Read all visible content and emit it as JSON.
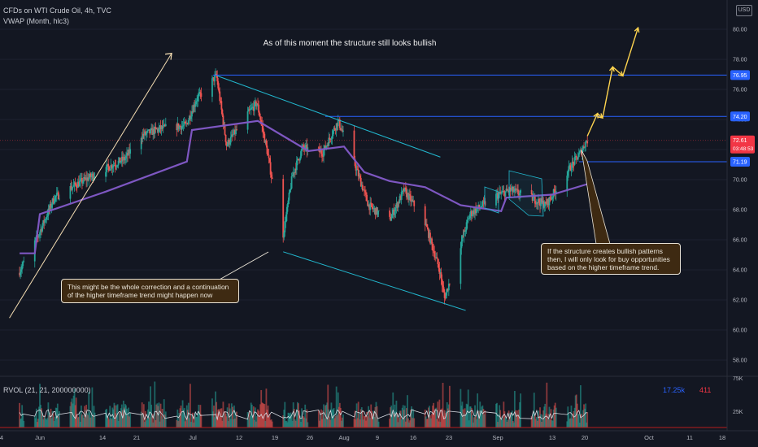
{
  "header": {
    "symbol_line": "CFDs on WTI Crude Oil, 4h, TVC",
    "indicator_line": "VWAP (Month, hlc3)"
  },
  "currency": "USD",
  "annotations": {
    "title": "As of this moment the structure still looks bullish",
    "left_note": "This might be the whole correction and a continuation of the higher timeframe trend might happen now",
    "right_note": "If the structure creates bullish patterns then, I will only look for buy opportunities based on the higher timeframe trend."
  },
  "rvol": {
    "label": "RVOL (21, 21, 200000000)",
    "value1": "17.25k",
    "value2": "411",
    "value1_color": "#2962ff",
    "value2_color": "#f23645",
    "axis_labels": [
      "75K",
      "25K"
    ]
  },
  "price_axis": {
    "ticks": [
      "80.00",
      "78.00",
      "76.00",
      "74.00",
      "72.00",
      "70.00",
      "68.00",
      "66.00",
      "64.00",
      "62.00",
      "60.00",
      "58.00"
    ],
    "badges": [
      {
        "label": "76.95",
        "value": 76.95,
        "color": "#2962ff"
      },
      {
        "label": "74.20",
        "value": 74.2,
        "color": "#2962ff"
      },
      {
        "label": "71.19",
        "value": 71.19,
        "color": "#2962ff"
      }
    ],
    "last_price": {
      "label": "72.61",
      "countdown": "03:48:53",
      "value": 72.61,
      "color": "#f23645"
    }
  },
  "time_axis": [
    "4",
    "Jun",
    "14",
    "21",
    "Jul",
    "12",
    "19",
    "26",
    "Aug",
    "9",
    "16",
    "23",
    "Sep",
    "13",
    "20",
    "Oct",
    "11",
    "18"
  ],
  "colors": {
    "up": "#26a69a",
    "down": "#ef5350",
    "vwap": "#7e57c2",
    "channel": "#22b8cf",
    "level_line": "#2962ff",
    "arrow": "#ffd54f"
  },
  "chart_data": {
    "type": "candlestick",
    "price_scale": {
      "min": 57,
      "max": 81.5
    },
    "horizontal_levels": [
      76.95,
      74.2,
      71.19
    ],
    "price_path": [
      {
        "date": "2021-05-28",
        "price": 63.8
      },
      {
        "date": "2021-06-01",
        "price": 66.4
      },
      {
        "date": "2021-06-04",
        "price": 68.8
      },
      {
        "date": "2021-06-09",
        "price": 69.8
      },
      {
        "date": "2021-06-14",
        "price": 70.7
      },
      {
        "date": "2021-06-18",
        "price": 71.4
      },
      {
        "date": "2021-06-21",
        "price": 72.9
      },
      {
        "date": "2021-06-25",
        "price": 73.4
      },
      {
        "date": "2021-06-30",
        "price": 73.6
      },
      {
        "date": "2021-07-02",
        "price": 75.3
      },
      {
        "date": "2021-07-06",
        "price": 76.9
      },
      {
        "date": "2021-07-08",
        "price": 72.3
      },
      {
        "date": "2021-07-12",
        "price": 74.3
      },
      {
        "date": "2021-07-14",
        "price": 75.1
      },
      {
        "date": "2021-07-16",
        "price": 71.9
      },
      {
        "date": "2021-07-19",
        "price": 66.0
      },
      {
        "date": "2021-07-21",
        "price": 70.3
      },
      {
        "date": "2021-07-23",
        "price": 72.1
      },
      {
        "date": "2021-07-27",
        "price": 71.8
      },
      {
        "date": "2021-07-30",
        "price": 73.9
      },
      {
        "date": "2021-08-02",
        "price": 71.3
      },
      {
        "date": "2021-08-05",
        "price": 68.3
      },
      {
        "date": "2021-08-09",
        "price": 67.2
      },
      {
        "date": "2021-08-12",
        "price": 69.3
      },
      {
        "date": "2021-08-16",
        "price": 67.3
      },
      {
        "date": "2021-08-19",
        "price": 64.0
      },
      {
        "date": "2021-08-20",
        "price": 62.1
      },
      {
        "date": "2021-08-23",
        "price": 65.5
      },
      {
        "date": "2021-08-25",
        "price": 67.7
      },
      {
        "date": "2021-08-30",
        "price": 68.9
      },
      {
        "date": "2021-09-02",
        "price": 69.3
      },
      {
        "date": "2021-09-06",
        "price": 68.8
      },
      {
        "date": "2021-09-09",
        "price": 68.3
      },
      {
        "date": "2021-09-13",
        "price": 70.4
      },
      {
        "date": "2021-09-16",
        "price": 71.9
      },
      {
        "date": "2021-09-17",
        "price": 72.6
      }
    ],
    "vwap_path": [
      {
        "date": "2021-05-28",
        "price": 65.1
      },
      {
        "date": "2021-05-31",
        "price": 65.1
      },
      {
        "date": "2021-06-01",
        "price": 67.7
      },
      {
        "date": "2021-06-14",
        "price": 69.2
      },
      {
        "date": "2021-06-30",
        "price": 71.2
      },
      {
        "date": "2021-07-01",
        "price": 73.3
      },
      {
        "date": "2021-07-14",
        "price": 73.9
      },
      {
        "date": "2021-07-20",
        "price": 72.7
      },
      {
        "date": "2021-07-24",
        "price": 71.9
      },
      {
        "date": "2021-07-31",
        "price": 72.2
      },
      {
        "date": "2021-08-04",
        "price": 70.5
      },
      {
        "date": "2021-08-09",
        "price": 69.9
      },
      {
        "date": "2021-08-16",
        "price": 69.5
      },
      {
        "date": "2021-08-23",
        "price": 68.3
      },
      {
        "date": "2021-08-31",
        "price": 67.9
      },
      {
        "date": "2021-09-01",
        "price": 68.8
      },
      {
        "date": "2021-09-10",
        "price": 69.0
      },
      {
        "date": "2021-09-17",
        "price": 69.7
      }
    ],
    "drawn_lines": [
      {
        "from": {
          "date": "2021-05-26",
          "price": 60.8
        },
        "to": {
          "date": "2021-06-27",
          "price": 78.4
        }
      },
      {
        "from": {
          "date": "2021-07-06",
          "price": 76.9
        },
        "to": {
          "date": "2021-08-19",
          "price": 71.5
        }
      },
      {
        "from": {
          "date": "2021-07-19",
          "price": 65.2
        },
        "to": {
          "date": "2021-08-24",
          "price": 61.3
        }
      }
    ],
    "projection": [
      {
        "date": "2021-09-17",
        "price": 72.9
      },
      {
        "date": "2021-09-19",
        "price": 74.4
      },
      {
        "date": "2021-09-20",
        "price": 74.1
      },
      {
        "date": "2021-09-22",
        "price": 77.5
      },
      {
        "date": "2021-09-24",
        "price": 76.9
      },
      {
        "date": "2021-09-27",
        "price": 80.1
      }
    ]
  }
}
